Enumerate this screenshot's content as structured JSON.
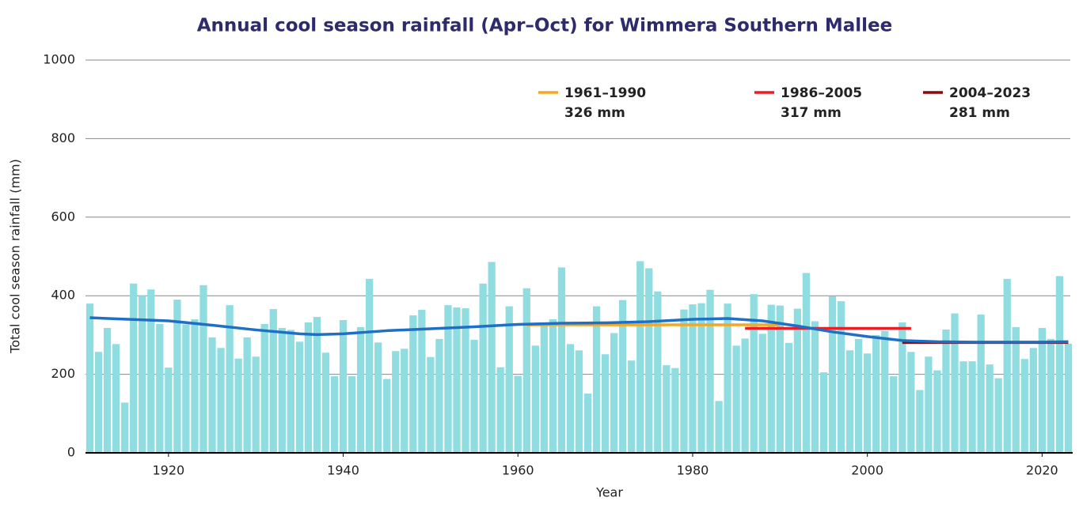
{
  "chart_data": {
    "type": "bar",
    "title": "Annual cool season rainfall (Apr–Oct) for Wimmera Southern Mallee",
    "xlabel": "Year",
    "ylabel": "Total cool season rainfall (mm)",
    "x": [
      1911,
      1912,
      1913,
      1914,
      1915,
      1916,
      1917,
      1918,
      1919,
      1920,
      1921,
      1922,
      1923,
      1924,
      1925,
      1926,
      1927,
      1928,
      1929,
      1930,
      1931,
      1932,
      1933,
      1934,
      1935,
      1936,
      1937,
      1938,
      1939,
      1940,
      1941,
      1942,
      1943,
      1944,
      1945,
      1946,
      1947,
      1948,
      1949,
      1950,
      1951,
      1952,
      1953,
      1954,
      1955,
      1956,
      1957,
      1958,
      1959,
      1960,
      1961,
      1962,
      1963,
      1964,
      1965,
      1966,
      1967,
      1968,
      1969,
      1970,
      1971,
      1972,
      1973,
      1974,
      1975,
      1976,
      1977,
      1978,
      1979,
      1980,
      1981,
      1982,
      1983,
      1984,
      1985,
      1986,
      1987,
      1988,
      1989,
      1990,
      1991,
      1992,
      1993,
      1994,
      1995,
      1996,
      1997,
      1998,
      1999,
      2000,
      2001,
      2002,
      2003,
      2004,
      2005,
      2006,
      2007,
      2008,
      2009,
      2010,
      2011,
      2012,
      2013,
      2014,
      2015,
      2016,
      2017,
      2018,
      2019,
      2020,
      2021,
      2022,
      2023
    ],
    "values": [
      380,
      257,
      318,
      277,
      128,
      431,
      400,
      416,
      328,
      217,
      390,
      327,
      340,
      427,
      294,
      267,
      376,
      240,
      294,
      245,
      328,
      366,
      318,
      313,
      283,
      332,
      346,
      255,
      195,
      338,
      195,
      320,
      443,
      281,
      188,
      259,
      265,
      350,
      364,
      244,
      290,
      376,
      370,
      368,
      288,
      431,
      486,
      218,
      373,
      196,
      419,
      273,
      330,
      340,
      472,
      277,
      261,
      151,
      373,
      251,
      305,
      389,
      235,
      488,
      470,
      411,
      223,
      216,
      365,
      378,
      381,
      415,
      132,
      380,
      273,
      291,
      404,
      303,
      377,
      375,
      280,
      367,
      458,
      335,
      205,
      399,
      386,
      261,
      290,
      253,
      300,
      310,
      195,
      332,
      257,
      160,
      245,
      210,
      314,
      355,
      233,
      233,
      352,
      225,
      190,
      443,
      320,
      239,
      267,
      318,
      290,
      450,
      278
    ],
    "color": "#8fdde0",
    "trend": {
      "x": [
        1911,
        1920,
        1925,
        1930,
        1935,
        1937,
        1940,
        1945,
        1950,
        1955,
        1960,
        1965,
        1970,
        1975,
        1980,
        1984,
        1988,
        1992,
        1996,
        2000,
        2004,
        2008,
        2012,
        2016,
        2020,
        2023
      ],
      "values": [
        344,
        336,
        325,
        313,
        303,
        301,
        303,
        311,
        316,
        321,
        327,
        330,
        331,
        334,
        340,
        342,
        336,
        323,
        308,
        296,
        286,
        283,
        282,
        282,
        282,
        283
      ],
      "color": "#1f6fc5"
    },
    "averages": [
      {
        "name": "1961–1990",
        "start": 1961,
        "end": 1990,
        "value": 326,
        "value_label": "326 mm",
        "color": "#f5a623"
      },
      {
        "name": "1986–2005",
        "start": 1986,
        "end": 2005,
        "value": 317,
        "value_label": "317 mm",
        "color": "#ee1c25"
      },
      {
        "name": "2004–2023",
        "start": 2004,
        "end": 2023,
        "value": 281,
        "value_label": "281 mm",
        "color": "#8b0b0b"
      }
    ],
    "xlim": [
      1910.5,
      2023.5
    ],
    "ylim": [
      0,
      1000
    ],
    "xticks": [
      1920,
      1940,
      1960,
      1980,
      2000,
      2020
    ],
    "yticks": [
      0,
      200,
      400,
      600,
      800,
      1000
    ],
    "grid": true
  }
}
